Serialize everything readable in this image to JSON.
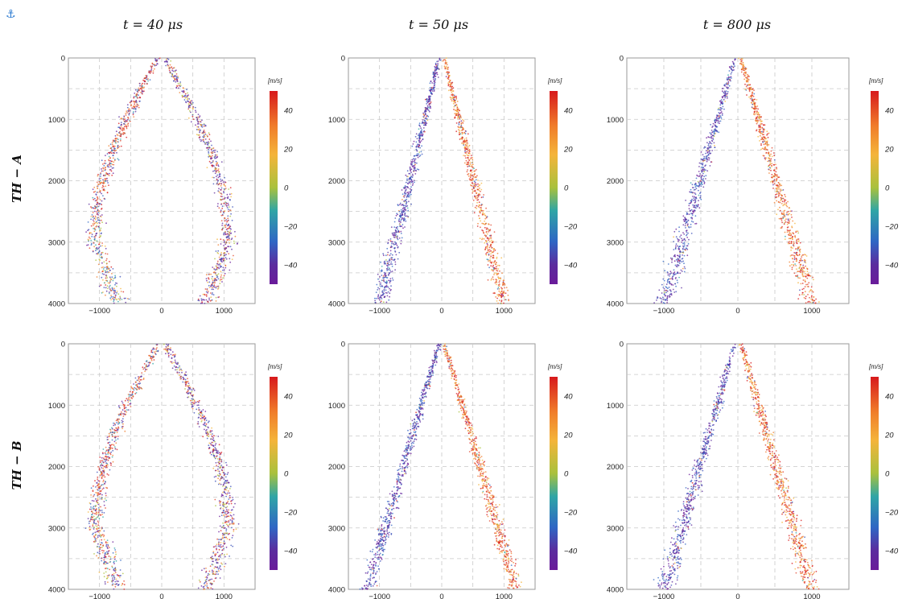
{
  "anchor_icon": "⚓",
  "titles": [
    "t = 40 μs",
    "t = 50 μs",
    "t = 800 μs"
  ],
  "rows": [
    "TH − A",
    "TH − B"
  ],
  "chart_data": [
    {
      "type": "scatter",
      "row": "TH − A",
      "time": "t = 40 μs",
      "shape": "loop",
      "xlim": [
        -1500,
        1500
      ],
      "ylim": [
        0,
        4000
      ],
      "y_inverted": true,
      "grid": true,
      "xticks": [
        -1000,
        0,
        1000
      ],
      "yticks": [
        0,
        1000,
        2000,
        3000,
        4000
      ],
      "colorbar": {
        "unit": "[m/s]",
        "range": [
          -50,
          50
        ],
        "ticks": [
          40,
          20,
          0,
          -20,
          -40
        ]
      }
    },
    {
      "type": "scatter",
      "row": "TH − A",
      "time": "t = 50 μs",
      "shape": "vee",
      "xlim": [
        -1500,
        1500
      ],
      "ylim": [
        0,
        4000
      ],
      "y_inverted": true,
      "grid": true,
      "xticks": [
        -1000,
        0,
        1000
      ],
      "yticks": [
        0,
        1000,
        2000,
        3000,
        4000
      ],
      "colorbar": {
        "unit": "[m/s]",
        "range": [
          -50,
          50
        ],
        "ticks": [
          40,
          20,
          0,
          -20,
          -40
        ]
      }
    },
    {
      "type": "scatter",
      "row": "TH − A",
      "time": "t = 800 μs",
      "shape": "vee",
      "xlim": [
        -1500,
        1500
      ],
      "ylim": [
        0,
        4000
      ],
      "y_inverted": true,
      "grid": true,
      "xticks": [
        -1000,
        0,
        1000
      ],
      "yticks": [
        0,
        1000,
        2000,
        3000,
        4000
      ],
      "colorbar": {
        "unit": "[m/s]",
        "range": [
          -50,
          50
        ],
        "ticks": [
          40,
          20,
          0,
          -20,
          -40
        ]
      }
    },
    {
      "type": "scatter",
      "row": "TH − B",
      "time": "t = 40 μs",
      "shape": "loop",
      "xlim": [
        -1500,
        1500
      ],
      "ylim": [
        0,
        4000
      ],
      "y_inverted": true,
      "grid": true,
      "xticks": [
        -1000,
        0,
        1000
      ],
      "yticks": [
        0,
        1000,
        2000,
        3000,
        4000
      ],
      "colorbar": {
        "unit": "[m/s]",
        "range": [
          -50,
          50
        ],
        "ticks": [
          40,
          20,
          0,
          -20,
          -40
        ]
      }
    },
    {
      "type": "scatter",
      "row": "TH − B",
      "time": "t = 50 μs",
      "shape": "vee",
      "xlim": [
        -1500,
        1500
      ],
      "ylim": [
        0,
        4000
      ],
      "y_inverted": true,
      "grid": true,
      "xticks": [
        -1000,
        0,
        1000
      ],
      "yticks": [
        0,
        1000,
        2000,
        3000,
        4000
      ],
      "colorbar": {
        "unit": "[m/s]",
        "range": [
          -50,
          50
        ],
        "ticks": [
          40,
          20,
          0,
          -20,
          -40
        ]
      }
    },
    {
      "type": "scatter",
      "row": "TH − B",
      "time": "t = 800 μs",
      "shape": "vee",
      "xlim": [
        -1500,
        1500
      ],
      "ylim": [
        0,
        4000
      ],
      "y_inverted": true,
      "grid": true,
      "xticks": [
        -1000,
        0,
        1000
      ],
      "yticks": [
        0,
        1000,
        2000,
        3000,
        4000
      ],
      "colorbar": {
        "unit": "[m/s]",
        "range": [
          -50,
          50
        ],
        "ticks": [
          40,
          20,
          0,
          -20,
          -40
        ]
      }
    }
  ],
  "colors": {
    "colorbar": [
      "#d7191c",
      "#f07c2a",
      "#f4b43a",
      "#a9c13d",
      "#2fa5a6",
      "#2f66c4",
      "#5b2c9e",
      "#6a1b9a"
    ],
    "frame": "#9a9a9a",
    "grid": "#c8c8c8",
    "anchor": "#2a7ad1"
  }
}
